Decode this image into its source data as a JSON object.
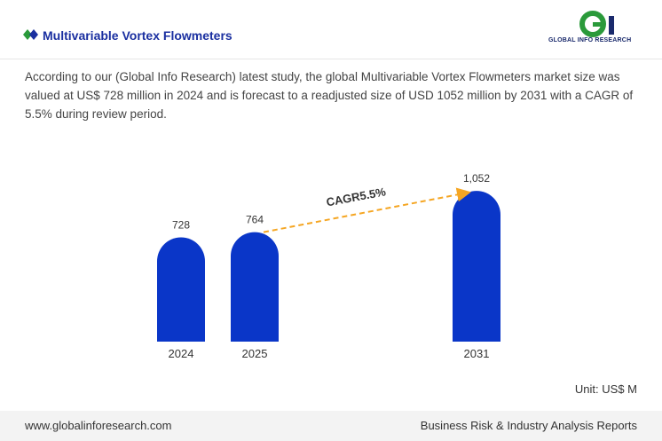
{
  "header": {
    "title": "Multivariable Vortex Flowmeters",
    "logo": "GLOBAL INFO RESEARCH"
  },
  "description": "According to our (Global Info Research) latest study, the global Multivariable Vortex Flowmeters market size was valued at US$ 728 million in 2024 and is forecast to a readjusted size of USD 1052 million by 2031 with a CAGR of 5.5% during review period.",
  "chart_data": {
    "type": "bar",
    "categories": [
      "2024",
      "2025",
      "2031"
    ],
    "values": [
      728,
      764,
      1052
    ],
    "value_labels": [
      "728",
      "764",
      "1,052"
    ],
    "color": "#0a36c8",
    "annotation": "CAGR5.5%",
    "unit": "Unit: US$ M"
  },
  "footer": {
    "left": "www.globalinforesearch.com",
    "right": "Business Risk & Industry Analysis Reports"
  }
}
